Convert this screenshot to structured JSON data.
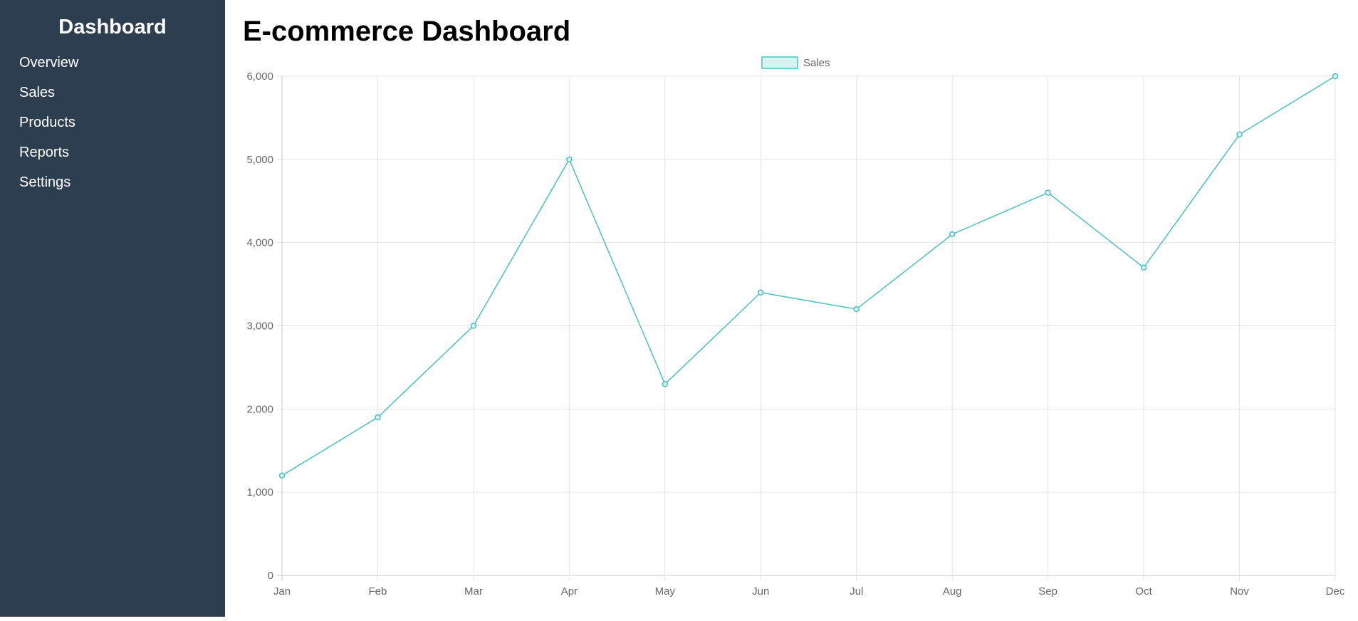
{
  "sidebar": {
    "title": "Dashboard",
    "items": [
      {
        "label": "Overview"
      },
      {
        "label": "Sales"
      },
      {
        "label": "Products"
      },
      {
        "label": "Reports"
      },
      {
        "label": "Settings"
      }
    ]
  },
  "main": {
    "title": "E-commerce Dashboard"
  },
  "colors": {
    "sidebar_bg": "#2c3e50",
    "line": "#4bc0c0",
    "legend_fill": "#d8f2f2",
    "grid": "#e5e5e5"
  },
  "chart_data": {
    "type": "line",
    "categories": [
      "Jan",
      "Feb",
      "Mar",
      "Apr",
      "May",
      "Jun",
      "Jul",
      "Aug",
      "Sep",
      "Oct",
      "Nov",
      "Dec"
    ],
    "series": [
      {
        "name": "Sales",
        "values": [
          1200,
          1900,
          3000,
          5000,
          2300,
          3400,
          3200,
          4100,
          4600,
          3700,
          5300,
          6000
        ]
      }
    ],
    "yticks": [
      "0",
      "1,000",
      "2,000",
      "3,000",
      "4,000",
      "5,000",
      "6,000"
    ],
    "ylim": [
      0,
      6000
    ],
    "grid": true,
    "legend_position": "top-center"
  }
}
